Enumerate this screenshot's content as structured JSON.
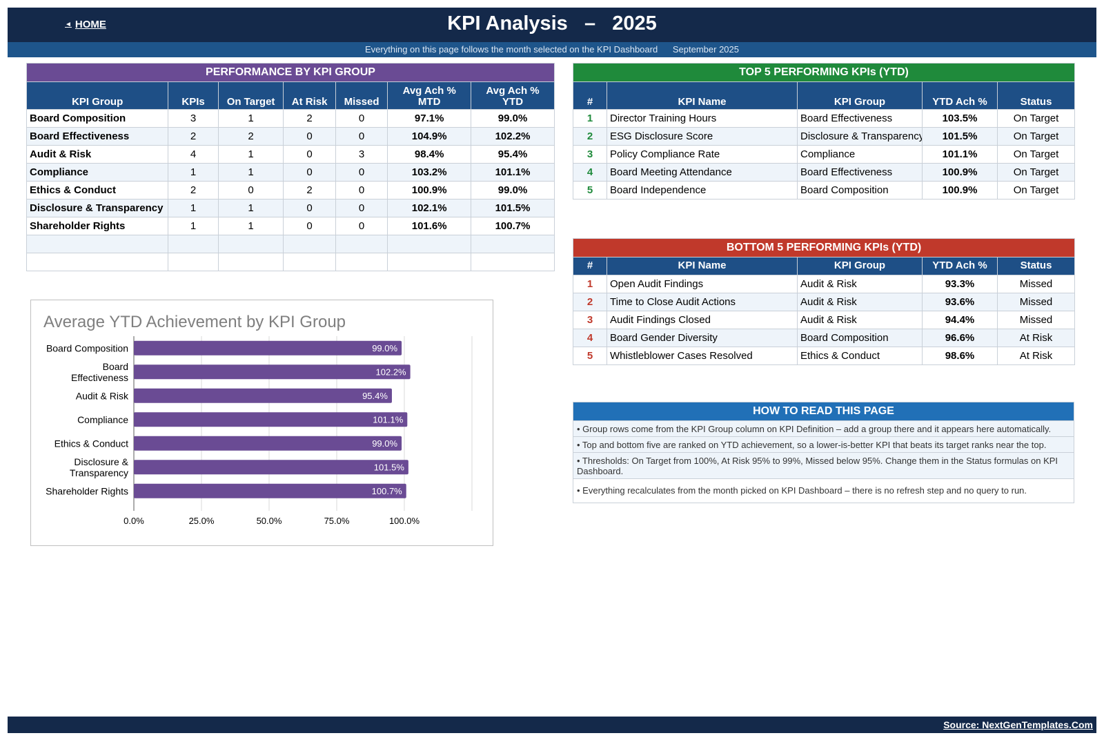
{
  "header": {
    "home_label": "HOME",
    "title": "KPI Analysis   –   2025",
    "subtitle": "Everything on this page follows the month selected on the KPI Dashboard      September 2025"
  },
  "performance": {
    "title": "PERFORMANCE BY KPI GROUP",
    "columns": [
      "KPI Group",
      "KPIs",
      "On Target",
      "At Risk",
      "Missed",
      "Avg Ach % MTD",
      "Avg Ach % YTD"
    ],
    "column_lines": [
      [
        "KPI Group"
      ],
      [
        "KPIs"
      ],
      [
        "On Target"
      ],
      [
        "At Risk"
      ],
      [
        "Missed"
      ],
      [
        "Avg Ach %",
        "MTD"
      ],
      [
        "Avg Ach %",
        "YTD"
      ]
    ],
    "rows": [
      [
        "Board Composition",
        "3",
        "1",
        "2",
        "0",
        "97.1%",
        "99.0%"
      ],
      [
        "Board Effectiveness",
        "2",
        "2",
        "0",
        "0",
        "104.9%",
        "102.2%"
      ],
      [
        "Audit & Risk",
        "4",
        "1",
        "0",
        "3",
        "98.4%",
        "95.4%"
      ],
      [
        "Compliance",
        "1",
        "1",
        "0",
        "0",
        "103.2%",
        "101.1%"
      ],
      [
        "Ethics & Conduct",
        "2",
        "0",
        "2",
        "0",
        "100.9%",
        "99.0%"
      ],
      [
        "Disclosure & Transparency",
        "1",
        "1",
        "0",
        "0",
        "102.1%",
        "101.5%"
      ],
      [
        "Shareholder Rights",
        "1",
        "1",
        "0",
        "0",
        "101.6%",
        "100.7%"
      ]
    ],
    "empty_rows": 2
  },
  "top5": {
    "title": "TOP 5 PERFORMING KPIs  (YTD)",
    "columns": [
      "#",
      "KPI Name",
      "KPI Group",
      "YTD Ach %",
      "Status"
    ],
    "rows": [
      [
        "1",
        "Director Training Hours",
        "Board Effectiveness",
        "103.5%",
        "On Target"
      ],
      [
        "2",
        "ESG Disclosure Score",
        "Disclosure & Transparency",
        "101.5%",
        "On Target"
      ],
      [
        "3",
        "Policy Compliance Rate",
        "Compliance",
        "101.1%",
        "On Target"
      ],
      [
        "4",
        "Board Meeting Attendance",
        "Board Effectiveness",
        "100.9%",
        "On Target"
      ],
      [
        "5",
        "Board Independence",
        "Board Composition",
        "100.9%",
        "On Target"
      ]
    ]
  },
  "bottom5": {
    "title": "BOTTOM 5 PERFORMING KPIs  (YTD)",
    "columns": [
      "#",
      "KPI Name",
      "KPI Group",
      "YTD Ach %",
      "Status"
    ],
    "rows": [
      [
        "1",
        "Open Audit Findings",
        "Audit & Risk",
        "93.3%",
        "Missed"
      ],
      [
        "2",
        "Time to Close Audit Actions",
        "Audit & Risk",
        "93.6%",
        "Missed"
      ],
      [
        "3",
        "Audit Findings Closed",
        "Audit & Risk",
        "94.4%",
        "Missed"
      ],
      [
        "4",
        "Board Gender Diversity",
        "Board Composition",
        "96.6%",
        "At Risk"
      ],
      [
        "5",
        "Whistleblower Cases Resolved",
        "Ethics & Conduct",
        "98.6%",
        "At Risk"
      ]
    ]
  },
  "howto": {
    "title": "HOW TO READ THIS PAGE",
    "notes": [
      "•  Group rows come from the KPI Group column on KPI Definition – add a group there and it appears here automatically.",
      "•  Top and bottom five are ranked on YTD achievement, so a lower-is-better KPI that beats its target ranks near the top.",
      "•  Thresholds: On Target from 100%, At Risk 95% to 99%, Missed below 95%. Change them in the Status formulas on KPI Dashboard.",
      "•  Everything recalculates from the month picked on KPI Dashboard – there is no refresh step and no query to run."
    ]
  },
  "chart_data": {
    "type": "bar",
    "orientation": "horizontal",
    "title": "Average YTD Achievement by KPI Group",
    "categories": [
      "Board Composition",
      "Board Effectiveness",
      "Audit & Risk",
      "Compliance",
      "Ethics & Conduct",
      "Disclosure & Transparency",
      "Shareholder Rights"
    ],
    "category_lines": [
      [
        "Board Composition"
      ],
      [
        "Board",
        "Effectiveness"
      ],
      [
        "Audit & Risk"
      ],
      [
        "Compliance"
      ],
      [
        "Ethics & Conduct"
      ],
      [
        "Disclosure &",
        "Transparency"
      ],
      [
        "Shareholder Rights"
      ]
    ],
    "values": [
      99.0,
      102.2,
      95.4,
      101.1,
      99.0,
      101.5,
      100.7
    ],
    "data_labels": [
      "99.0%",
      "102.2%",
      "95.4%",
      "101.1%",
      "99.0%",
      "101.5%",
      "100.7%"
    ],
    "xlim": [
      0,
      125
    ],
    "xticks": [
      0,
      25,
      50,
      75,
      100
    ],
    "xtick_labels": [
      "0.0%",
      "25.0%",
      "50.0%",
      "75.0%",
      "100.0%"
    ],
    "grid": true,
    "bar_color": "#6a4b94"
  },
  "footer": {
    "source": "Source: NextGenTemplates.Com"
  },
  "colors": {
    "header_navy": "#14294a",
    "subheader_blue": "#1e558b",
    "purple": "#6a4b94",
    "green": "#1f8a3b",
    "red": "#c0392b",
    "blue": "#2170b7"
  }
}
